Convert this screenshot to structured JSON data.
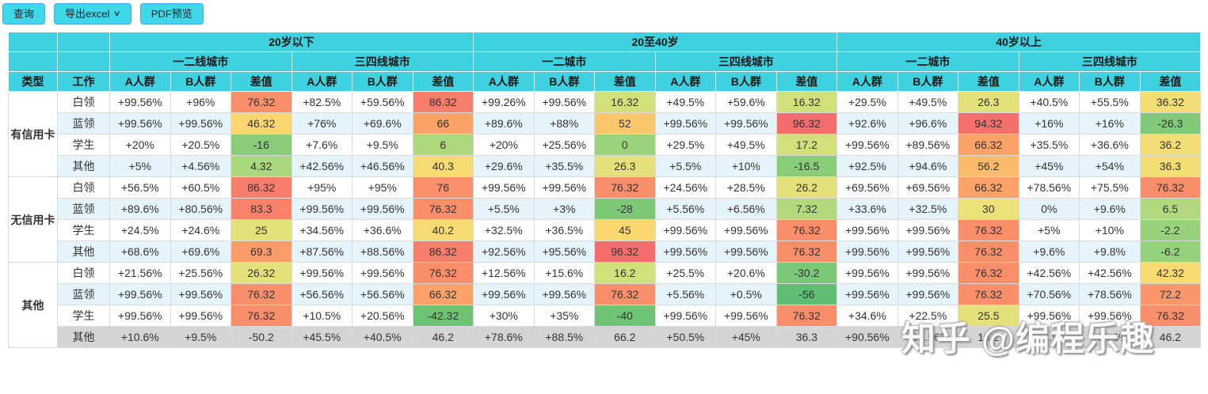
{
  "toolbar": {
    "query_label": "查询",
    "export_label": "导出excel",
    "pdf_label": "PDF预览"
  },
  "colors": {
    "header_bg": "#3ED2E0",
    "button_bg": "#3ED8E8",
    "button_border": "#4AA4F2",
    "stripe_bg": "#E5F4FB",
    "muted_row_bg": "#D4D4D4",
    "cell_border": "#DADADA",
    "diff_gradient_stops": [
      [
        -56,
        "#5FBE73"
      ],
      [
        0,
        "#9BD37C"
      ],
      [
        16,
        "#D0E07B"
      ],
      [
        30,
        "#EDE27A"
      ],
      [
        46,
        "#FBD76E"
      ],
      [
        66,
        "#FAA368"
      ],
      [
        76,
        "#F98F6B"
      ],
      [
        96,
        "#F56C6C"
      ]
    ]
  },
  "table": {
    "col_headers": {
      "type": "类型",
      "work": "工作",
      "age_groups": [
        {
          "label": "20岁以下",
          "cities": [
            "一二线城市",
            "三四线城市"
          ]
        },
        {
          "label": "20至40岁",
          "cities": [
            "一二城市",
            "三四线城市"
          ]
        },
        {
          "label": "40岁以上",
          "cities": [
            "一二城市",
            "三四线城市"
          ]
        }
      ],
      "metrics": [
        "A人群",
        "B人群",
        "差值"
      ]
    },
    "groups": [
      {
        "type": "有信用卡",
        "rows": [
          {
            "work": "白领",
            "cells": [
              "+99.56%",
              "+96%",
              76.32,
              "+82.5%",
              "+59.56%",
              86.32,
              "+99.26%",
              "+99.56%",
              16.32,
              "+49.5%",
              "+59.6%",
              16.32,
              "+29.5%",
              "+49.5%",
              26.3,
              "+40.5%",
              "+55.5%",
              36.32
            ]
          },
          {
            "work": "蓝领",
            "cells": [
              "+99.56%",
              "+99.56%",
              46.32,
              "+76%",
              "+69.6%",
              66,
              "+89.6%",
              "+88%",
              52,
              "+99.56%",
              "+99.56%",
              96.32,
              "+92.6%",
              "+96.6%",
              94.32,
              "+16%",
              "+16%",
              -26.3
            ]
          },
          {
            "work": "学生",
            "cells": [
              "+20%",
              "+20.5%",
              -16,
              "+7.6%",
              "+9.5%",
              6,
              "+20%",
              "+25.56%",
              0,
              "+29.5%",
              "+49.5%",
              17.2,
              "+99.56%",
              "+89.56%",
              66.32,
              "+35.5%",
              "+36.6%",
              36.2
            ]
          },
          {
            "work": "其他",
            "cells": [
              "+5%",
              "+4.56%",
              4.32,
              "+42.56%",
              "+46.56%",
              40.3,
              "+29.6%",
              "+35.5%",
              26.3,
              "+5.5%",
              "+10%",
              -16.5,
              "+92.5%",
              "+94.6%",
              56.2,
              "+45%",
              "+54%",
              36.3
            ]
          }
        ]
      },
      {
        "type": "无信用卡",
        "rows": [
          {
            "work": "白领",
            "cells": [
              "+56.5%",
              "+60.5%",
              86.32,
              "+95%",
              "+95%",
              76,
              "+99.56%",
              "+99.56%",
              76.32,
              "+24.56%",
              "+28.5%",
              26.2,
              "+69.56%",
              "+69.56%",
              66.32,
              "+78.56%",
              "+75.5%",
              76.32
            ]
          },
          {
            "work": "蓝领",
            "cells": [
              "+89.6%",
              "+80.56%",
              83.3,
              "+99.56%",
              "+99.56%",
              76.32,
              "+5.5%",
              "+3%",
              -28,
              "+5.56%",
              "+6.56%",
              7.32,
              "+33.6%",
              "+32.5%",
              30,
              "0%",
              "+9.6%",
              6.5
            ]
          },
          {
            "work": "学生",
            "cells": [
              "+24.5%",
              "+24.6%",
              25,
              "+34.56%",
              "+36.6%",
              40.2,
              "+32.5%",
              "+36.5%",
              45,
              "+99.56%",
              "+99.56%",
              76.32,
              "+99.56%",
              "+99.56%",
              76.32,
              "+5%",
              "+10%",
              -2.2
            ]
          },
          {
            "work": "其他",
            "cells": [
              "+68.6%",
              "+69.6%",
              69.3,
              "+87.56%",
              "+88.56%",
              86.32,
              "+92.56%",
              "+95.56%",
              96.32,
              "+99.56%",
              "+99.56%",
              76.32,
              "+99.56%",
              "+99.56%",
              76.32,
              "+9.6%",
              "+9.8%",
              -6.2
            ]
          }
        ]
      },
      {
        "type": "其他",
        "rows": [
          {
            "work": "白领",
            "cells": [
              "+21.56%",
              "+25.56%",
              26.32,
              "+99.56%",
              "+99.56%",
              76.32,
              "+12.56%",
              "+15.6%",
              16.2,
              "+25.5%",
              "+20.6%",
              -30.2,
              "+99.56%",
              "+99.56%",
              76.32,
              "+42.56%",
              "+42.56%",
              42.32
            ]
          },
          {
            "work": "蓝领",
            "cells": [
              "+99.56%",
              "+99.56%",
              76.32,
              "+56.56%",
              "+56.56%",
              66.32,
              "+99.56%",
              "+99.56%",
              76.32,
              "+5.56%",
              "+0.5%",
              -56,
              "+99.56%",
              "+99.56%",
              76.32,
              "+70.56%",
              "+78.56%",
              72.2
            ]
          },
          {
            "work": "学生",
            "cells": [
              "+99.56%",
              "+99.56%",
              76.32,
              "+10.5%",
              "+20.56%",
              -42.32,
              "+30%",
              "+35%",
              -40,
              "+99.56%",
              "+99.56%",
              76.32,
              "+34.6%",
              "+22.5%",
              25.5,
              "+99.56%",
              "+99.56%",
              76.32
            ]
          },
          {
            "work": "其他",
            "muted": true,
            "cells": [
              "+10.6%",
              "+9.5%",
              -50.2,
              "+45.5%",
              "+40.5%",
              46.2,
              "+78.6%",
              "+88.5%",
              66.2,
              "+50.5%",
              "+45%",
              36.3,
              "+90.56%",
              "+94.56%",
              16.2,
              "+42.5%",
              "+34.6%",
              46.2
            ]
          }
        ]
      }
    ]
  },
  "watermark": "知乎 @编程乐趣"
}
